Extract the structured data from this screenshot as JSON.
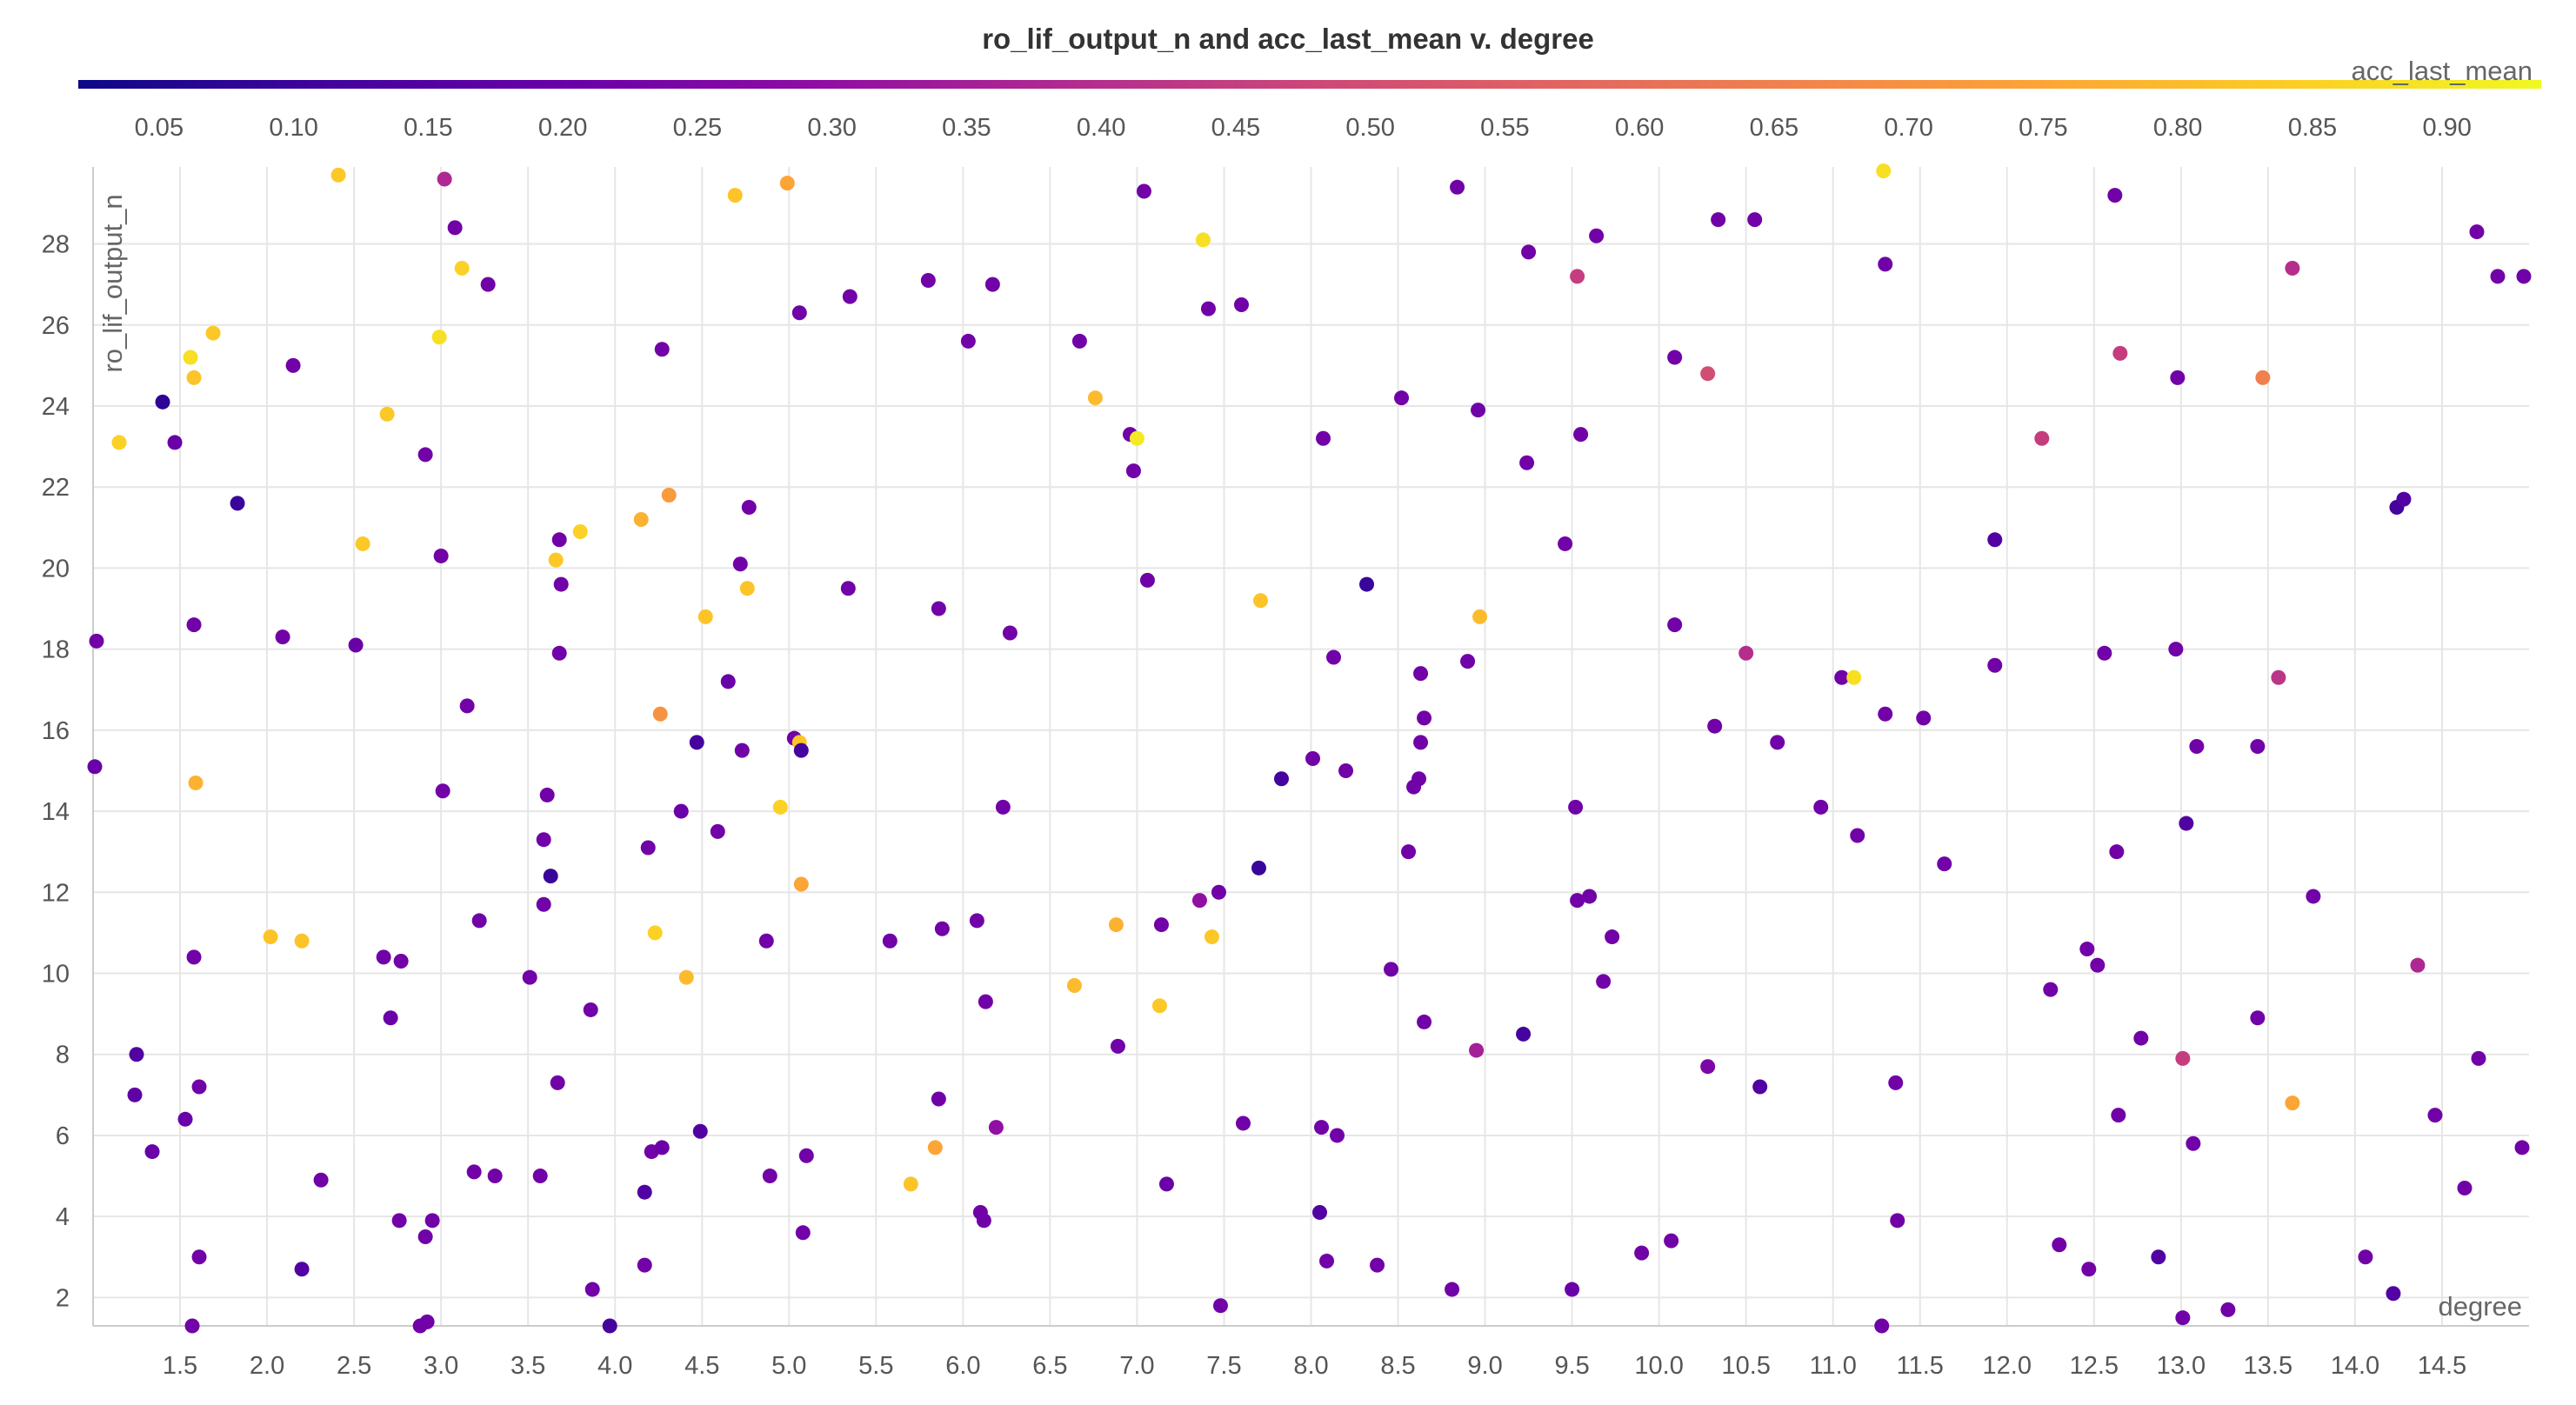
{
  "chart_data": {
    "type": "scatter",
    "title": "ro_lif_output_n and acc_last_mean v. degree",
    "xlabel": "degree",
    "ylabel": "ro_lif_output_n",
    "xlim": [
      1.0,
      15.0
    ],
    "ylim": [
      1.3,
      29.9
    ],
    "x_ticks": [
      "1.5",
      "2.0",
      "2.5",
      "3.0",
      "3.5",
      "4.0",
      "4.5",
      "5.0",
      "5.5",
      "6.0",
      "6.5",
      "7.0",
      "7.5",
      "8.0",
      "8.5",
      "9.0",
      "9.5",
      "10.0",
      "10.5",
      "11.0",
      "11.5",
      "12.0",
      "12.5",
      "13.0",
      "13.5",
      "14.0",
      "14.5"
    ],
    "y_ticks": [
      "2",
      "4",
      "6",
      "8",
      "10",
      "12",
      "14",
      "16",
      "18",
      "20",
      "22",
      "24",
      "26",
      "28"
    ],
    "grid": true,
    "color_axis": {
      "label": "acc_last_mean",
      "range": [
        0.02,
        0.935
      ],
      "ticks": [
        "0.05",
        "0.10",
        "0.15",
        "0.20",
        "0.25",
        "0.30",
        "0.35",
        "0.40",
        "0.45",
        "0.50",
        "0.55",
        "0.60",
        "0.65",
        "0.70",
        "0.75",
        "0.80",
        "0.85",
        "0.90"
      ],
      "colormap": "plasma",
      "placement": "top"
    },
    "points": [
      {
        "x": 1.02,
        "y": 18.2,
        "c": 0.22
      },
      {
        "x": 1.01,
        "y": 15.1,
        "c": 0.2
      },
      {
        "x": 1.15,
        "y": 23.1,
        "c": 0.85
      },
      {
        "x": 1.4,
        "y": 24.1,
        "c": 0.08
      },
      {
        "x": 1.47,
        "y": 23.1,
        "c": 0.2
      },
      {
        "x": 1.25,
        "y": 8.0,
        "c": 0.15
      },
      {
        "x": 1.24,
        "y": 7.0,
        "c": 0.18
      },
      {
        "x": 1.34,
        "y": 5.6,
        "c": 0.2
      },
      {
        "x": 1.53,
        "y": 6.4,
        "c": 0.2
      },
      {
        "x": 1.58,
        "y": 10.4,
        "c": 0.22
      },
      {
        "x": 1.58,
        "y": 18.6,
        "c": 0.22
      },
      {
        "x": 1.59,
        "y": 14.7,
        "c": 0.78
      },
      {
        "x": 1.56,
        "y": 25.2,
        "c": 0.88
      },
      {
        "x": 1.58,
        "y": 24.7,
        "c": 0.82
      },
      {
        "x": 1.69,
        "y": 25.8,
        "c": 0.83
      },
      {
        "x": 1.61,
        "y": 7.2,
        "c": 0.22
      },
      {
        "x": 1.61,
        "y": 3.0,
        "c": 0.22
      },
      {
        "x": 1.57,
        "y": 1.3,
        "c": 0.22
      },
      {
        "x": 1.83,
        "y": 21.6,
        "c": 0.1
      },
      {
        "x": 2.02,
        "y": 10.9,
        "c": 0.82
      },
      {
        "x": 2.09,
        "y": 18.3,
        "c": 0.22
      },
      {
        "x": 2.15,
        "y": 25.0,
        "c": 0.22
      },
      {
        "x": 2.2,
        "y": 10.8,
        "c": 0.82
      },
      {
        "x": 2.2,
        "y": 2.7,
        "c": 0.15
      },
      {
        "x": 2.31,
        "y": 4.9,
        "c": 0.22
      },
      {
        "x": 2.41,
        "y": 29.7,
        "c": 0.83
      },
      {
        "x": 2.51,
        "y": 18.1,
        "c": 0.2
      },
      {
        "x": 2.55,
        "y": 20.6,
        "c": 0.83
      },
      {
        "x": 2.67,
        "y": 10.4,
        "c": 0.22
      },
      {
        "x": 2.69,
        "y": 23.8,
        "c": 0.83
      },
      {
        "x": 2.71,
        "y": 8.9,
        "c": 0.2
      },
      {
        "x": 2.77,
        "y": 10.3,
        "c": 0.22
      },
      {
        "x": 2.76,
        "y": 3.9,
        "c": 0.22
      },
      {
        "x": 2.88,
        "y": 1.3,
        "c": 0.22
      },
      {
        "x": 2.92,
        "y": 1.4,
        "c": 0.22
      },
      {
        "x": 2.91,
        "y": 22.8,
        "c": 0.22
      },
      {
        "x": 2.91,
        "y": 3.5,
        "c": 0.22
      },
      {
        "x": 2.95,
        "y": 3.9,
        "c": 0.22
      },
      {
        "x": 2.99,
        "y": 25.7,
        "c": 0.88
      },
      {
        "x": 3.0,
        "y": 20.3,
        "c": 0.22
      },
      {
        "x": 3.01,
        "y": 14.5,
        "c": 0.22
      },
      {
        "x": 3.02,
        "y": 29.6,
        "c": 0.38
      },
      {
        "x": 3.08,
        "y": 28.4,
        "c": 0.22
      },
      {
        "x": 3.12,
        "y": 27.4,
        "c": 0.85
      },
      {
        "x": 3.15,
        "y": 16.6,
        "c": 0.22
      },
      {
        "x": 3.19,
        "y": 5.1,
        "c": 0.22
      },
      {
        "x": 3.22,
        "y": 11.3,
        "c": 0.22
      },
      {
        "x": 3.27,
        "y": 27.0,
        "c": 0.22
      },
      {
        "x": 3.31,
        "y": 5.0,
        "c": 0.22
      },
      {
        "x": 3.51,
        "y": 9.9,
        "c": 0.22
      },
      {
        "x": 3.57,
        "y": 5.0,
        "c": 0.22
      },
      {
        "x": 3.59,
        "y": 13.3,
        "c": 0.22
      },
      {
        "x": 3.59,
        "y": 11.7,
        "c": 0.22
      },
      {
        "x": 3.61,
        "y": 14.4,
        "c": 0.22
      },
      {
        "x": 3.63,
        "y": 12.4,
        "c": 0.1
      },
      {
        "x": 3.66,
        "y": 20.2,
        "c": 0.83
      },
      {
        "x": 3.68,
        "y": 20.7,
        "c": 0.22
      },
      {
        "x": 3.68,
        "y": 17.9,
        "c": 0.22
      },
      {
        "x": 3.69,
        "y": 19.6,
        "c": 0.22
      },
      {
        "x": 3.67,
        "y": 7.3,
        "c": 0.22
      },
      {
        "x": 3.8,
        "y": 20.9,
        "c": 0.85
      },
      {
        "x": 3.86,
        "y": 9.1,
        "c": 0.22
      },
      {
        "x": 3.87,
        "y": 2.2,
        "c": 0.22
      },
      {
        "x": 3.97,
        "y": 1.3,
        "c": 0.12
      },
      {
        "x": 4.15,
        "y": 21.2,
        "c": 0.78
      },
      {
        "x": 4.17,
        "y": 2.8,
        "c": 0.22
      },
      {
        "x": 4.17,
        "y": 4.6,
        "c": 0.15
      },
      {
        "x": 4.19,
        "y": 13.1,
        "c": 0.22
      },
      {
        "x": 4.21,
        "y": 5.6,
        "c": 0.22
      },
      {
        "x": 4.23,
        "y": 11.0,
        "c": 0.85
      },
      {
        "x": 4.26,
        "y": 16.4,
        "c": 0.7
      },
      {
        "x": 4.27,
        "y": 25.4,
        "c": 0.22
      },
      {
        "x": 4.27,
        "y": 5.7,
        "c": 0.2
      },
      {
        "x": 4.31,
        "y": 21.8,
        "c": 0.72
      },
      {
        "x": 4.38,
        "y": 14.0,
        "c": 0.2
      },
      {
        "x": 4.41,
        "y": 9.9,
        "c": 0.8
      },
      {
        "x": 4.47,
        "y": 15.7,
        "c": 0.12
      },
      {
        "x": 4.49,
        "y": 6.1,
        "c": 0.15
      },
      {
        "x": 4.52,
        "y": 18.8,
        "c": 0.82
      },
      {
        "x": 4.59,
        "y": 13.5,
        "c": 0.22
      },
      {
        "x": 4.65,
        "y": 17.2,
        "c": 0.2
      },
      {
        "x": 4.69,
        "y": 29.2,
        "c": 0.82
      },
      {
        "x": 4.72,
        "y": 20.1,
        "c": 0.22
      },
      {
        "x": 4.73,
        "y": 15.5,
        "c": 0.22
      },
      {
        "x": 4.76,
        "y": 19.5,
        "c": 0.82
      },
      {
        "x": 4.77,
        "y": 21.5,
        "c": 0.22
      },
      {
        "x": 4.87,
        "y": 10.8,
        "c": 0.22
      },
      {
        "x": 4.89,
        "y": 5.0,
        "c": 0.22
      },
      {
        "x": 4.95,
        "y": 14.1,
        "c": 0.85
      },
      {
        "x": 4.99,
        "y": 29.5,
        "c": 0.75
      },
      {
        "x": 5.03,
        "y": 15.8,
        "c": 0.22
      },
      {
        "x": 5.06,
        "y": 15.7,
        "c": 0.82
      },
      {
        "x": 5.06,
        "y": 26.3,
        "c": 0.22
      },
      {
        "x": 5.07,
        "y": 15.5,
        "c": 0.12
      },
      {
        "x": 5.07,
        "y": 12.2,
        "c": 0.75
      },
      {
        "x": 5.08,
        "y": 3.6,
        "c": 0.22
      },
      {
        "x": 5.1,
        "y": 5.5,
        "c": 0.22
      },
      {
        "x": 5.34,
        "y": 19.5,
        "c": 0.22
      },
      {
        "x": 5.35,
        "y": 26.7,
        "c": 0.22
      },
      {
        "x": 5.58,
        "y": 10.8,
        "c": 0.22
      },
      {
        "x": 5.7,
        "y": 4.8,
        "c": 0.82
      },
      {
        "x": 5.8,
        "y": 27.1,
        "c": 0.22
      },
      {
        "x": 5.84,
        "y": 5.7,
        "c": 0.75
      },
      {
        "x": 5.86,
        "y": 19.0,
        "c": 0.22
      },
      {
        "x": 5.86,
        "y": 6.9,
        "c": 0.22
      },
      {
        "x": 5.88,
        "y": 11.1,
        "c": 0.22
      },
      {
        "x": 6.03,
        "y": 25.6,
        "c": 0.22
      },
      {
        "x": 6.08,
        "y": 11.3,
        "c": 0.22
      },
      {
        "x": 6.1,
        "y": 4.1,
        "c": 0.22
      },
      {
        "x": 6.12,
        "y": 3.9,
        "c": 0.22
      },
      {
        "x": 6.13,
        "y": 9.3,
        "c": 0.22
      },
      {
        "x": 6.17,
        "y": 27.0,
        "c": 0.22
      },
      {
        "x": 6.19,
        "y": 6.2,
        "c": 0.3
      },
      {
        "x": 6.23,
        "y": 14.1,
        "c": 0.22
      },
      {
        "x": 6.27,
        "y": 18.4,
        "c": 0.22
      },
      {
        "x": 6.64,
        "y": 9.7,
        "c": 0.8
      },
      {
        "x": 6.67,
        "y": 25.6,
        "c": 0.22
      },
      {
        "x": 6.76,
        "y": 24.2,
        "c": 0.8
      },
      {
        "x": 6.88,
        "y": 11.2,
        "c": 0.78
      },
      {
        "x": 6.89,
        "y": 8.2,
        "c": 0.22
      },
      {
        "x": 6.96,
        "y": 23.3,
        "c": 0.22
      },
      {
        "x": 6.98,
        "y": 22.4,
        "c": 0.22
      },
      {
        "x": 7.0,
        "y": 23.2,
        "c": 0.9
      },
      {
        "x": 7.04,
        "y": 29.3,
        "c": 0.22
      },
      {
        "x": 7.06,
        "y": 19.7,
        "c": 0.22
      },
      {
        "x": 7.13,
        "y": 9.2,
        "c": 0.83
      },
      {
        "x": 7.14,
        "y": 11.2,
        "c": 0.22
      },
      {
        "x": 7.17,
        "y": 4.8,
        "c": 0.2
      },
      {
        "x": 7.36,
        "y": 11.8,
        "c": 0.3
      },
      {
        "x": 7.38,
        "y": 28.1,
        "c": 0.88
      },
      {
        "x": 7.41,
        "y": 26.4,
        "c": 0.22
      },
      {
        "x": 7.43,
        "y": 10.9,
        "c": 0.83
      },
      {
        "x": 7.47,
        "y": 12.0,
        "c": 0.22
      },
      {
        "x": 7.48,
        "y": 1.8,
        "c": 0.22
      },
      {
        "x": 7.6,
        "y": 26.5,
        "c": 0.22
      },
      {
        "x": 7.61,
        "y": 6.3,
        "c": 0.22
      },
      {
        "x": 7.7,
        "y": 12.6,
        "c": 0.1
      },
      {
        "x": 7.71,
        "y": 19.2,
        "c": 0.82
      },
      {
        "x": 7.83,
        "y": 14.8,
        "c": 0.12
      },
      {
        "x": 8.01,
        "y": 15.3,
        "c": 0.22
      },
      {
        "x": 8.05,
        "y": 4.1,
        "c": 0.15
      },
      {
        "x": 8.06,
        "y": 6.2,
        "c": 0.22
      },
      {
        "x": 8.07,
        "y": 23.2,
        "c": 0.22
      },
      {
        "x": 8.09,
        "y": 2.9,
        "c": 0.22
      },
      {
        "x": 8.13,
        "y": 17.8,
        "c": 0.22
      },
      {
        "x": 8.15,
        "y": 6.0,
        "c": 0.22
      },
      {
        "x": 8.2,
        "y": 15.0,
        "c": 0.22
      },
      {
        "x": 8.32,
        "y": 19.6,
        "c": 0.1
      },
      {
        "x": 8.38,
        "y": 2.8,
        "c": 0.22
      },
      {
        "x": 8.46,
        "y": 10.1,
        "c": 0.22
      },
      {
        "x": 8.52,
        "y": 24.2,
        "c": 0.22
      },
      {
        "x": 8.56,
        "y": 13.0,
        "c": 0.22
      },
      {
        "x": 8.59,
        "y": 14.6,
        "c": 0.22
      },
      {
        "x": 8.62,
        "y": 14.8,
        "c": 0.22
      },
      {
        "x": 8.63,
        "y": 15.7,
        "c": 0.22
      },
      {
        "x": 8.63,
        "y": 17.4,
        "c": 0.22
      },
      {
        "x": 8.65,
        "y": 16.3,
        "c": 0.22
      },
      {
        "x": 8.65,
        "y": 8.8,
        "c": 0.22
      },
      {
        "x": 8.81,
        "y": 2.2,
        "c": 0.22
      },
      {
        "x": 8.84,
        "y": 29.4,
        "c": 0.22
      },
      {
        "x": 8.9,
        "y": 17.7,
        "c": 0.22
      },
      {
        "x": 8.95,
        "y": 8.1,
        "c": 0.35
      },
      {
        "x": 8.96,
        "y": 23.9,
        "c": 0.22
      },
      {
        "x": 8.97,
        "y": 18.8,
        "c": 0.8
      },
      {
        "x": 9.22,
        "y": 8.5,
        "c": 0.12
      },
      {
        "x": 9.24,
        "y": 22.6,
        "c": 0.22
      },
      {
        "x": 9.25,
        "y": 27.8,
        "c": 0.22
      },
      {
        "x": 9.46,
        "y": 20.6,
        "c": 0.22
      },
      {
        "x": 9.5,
        "y": 2.2,
        "c": 0.2
      },
      {
        "x": 9.52,
        "y": 14.1,
        "c": 0.22
      },
      {
        "x": 9.53,
        "y": 11.8,
        "c": 0.22
      },
      {
        "x": 9.53,
        "y": 27.2,
        "c": 0.45
      },
      {
        "x": 9.55,
        "y": 23.3,
        "c": 0.22
      },
      {
        "x": 9.6,
        "y": 11.9,
        "c": 0.22
      },
      {
        "x": 9.64,
        "y": 28.2,
        "c": 0.22
      },
      {
        "x": 9.68,
        "y": 9.8,
        "c": 0.22
      },
      {
        "x": 9.73,
        "y": 10.9,
        "c": 0.22
      },
      {
        "x": 9.9,
        "y": 3.1,
        "c": 0.22
      },
      {
        "x": 10.07,
        "y": 3.4,
        "c": 0.22
      },
      {
        "x": 10.09,
        "y": 25.2,
        "c": 0.22
      },
      {
        "x": 10.09,
        "y": 18.6,
        "c": 0.22
      },
      {
        "x": 10.28,
        "y": 7.7,
        "c": 0.25
      },
      {
        "x": 10.28,
        "y": 24.8,
        "c": 0.5
      },
      {
        "x": 10.32,
        "y": 16.1,
        "c": 0.22
      },
      {
        "x": 10.34,
        "y": 28.6,
        "c": 0.22
      },
      {
        "x": 10.5,
        "y": 17.9,
        "c": 0.4
      },
      {
        "x": 10.55,
        "y": 28.6,
        "c": 0.22
      },
      {
        "x": 10.58,
        "y": 7.2,
        "c": 0.15
      },
      {
        "x": 10.68,
        "y": 15.7,
        "c": 0.22
      },
      {
        "x": 10.93,
        "y": 14.1,
        "c": 0.22
      },
      {
        "x": 11.05,
        "y": 17.3,
        "c": 0.22
      },
      {
        "x": 11.12,
        "y": 17.3,
        "c": 0.88
      },
      {
        "x": 11.14,
        "y": 13.4,
        "c": 0.22
      },
      {
        "x": 11.3,
        "y": 16.4,
        "c": 0.22
      },
      {
        "x": 11.3,
        "y": 27.5,
        "c": 0.22
      },
      {
        "x": 11.29,
        "y": 29.8,
        "c": 0.88
      },
      {
        "x": 11.28,
        "y": 1.3,
        "c": 0.22
      },
      {
        "x": 11.36,
        "y": 7.3,
        "c": 0.22
      },
      {
        "x": 11.37,
        "y": 3.9,
        "c": 0.22
      },
      {
        "x": 11.52,
        "y": 16.3,
        "c": 0.22
      },
      {
        "x": 11.64,
        "y": 12.7,
        "c": 0.22
      },
      {
        "x": 11.93,
        "y": 17.6,
        "c": 0.22
      },
      {
        "x": 11.93,
        "y": 20.7,
        "c": 0.15
      },
      {
        "x": 12.2,
        "y": 23.2,
        "c": 0.45
      },
      {
        "x": 12.25,
        "y": 9.6,
        "c": 0.22
      },
      {
        "x": 12.3,
        "y": 3.3,
        "c": 0.22
      },
      {
        "x": 12.46,
        "y": 10.6,
        "c": 0.22
      },
      {
        "x": 12.47,
        "y": 2.7,
        "c": 0.22
      },
      {
        "x": 12.52,
        "y": 10.2,
        "c": 0.22
      },
      {
        "x": 12.56,
        "y": 17.9,
        "c": 0.22
      },
      {
        "x": 12.62,
        "y": 29.2,
        "c": 0.22
      },
      {
        "x": 12.63,
        "y": 13.0,
        "c": 0.22
      },
      {
        "x": 12.64,
        "y": 6.5,
        "c": 0.22
      },
      {
        "x": 12.65,
        "y": 25.3,
        "c": 0.45
      },
      {
        "x": 12.77,
        "y": 8.4,
        "c": 0.22
      },
      {
        "x": 12.87,
        "y": 3.0,
        "c": 0.15
      },
      {
        "x": 12.97,
        "y": 18.0,
        "c": 0.22
      },
      {
        "x": 12.98,
        "y": 24.7,
        "c": 0.22
      },
      {
        "x": 13.01,
        "y": 7.9,
        "c": 0.45
      },
      {
        "x": 13.01,
        "y": 1.5,
        "c": 0.22
      },
      {
        "x": 13.03,
        "y": 13.7,
        "c": 0.15
      },
      {
        "x": 13.07,
        "y": 5.8,
        "c": 0.22
      },
      {
        "x": 13.09,
        "y": 15.6,
        "c": 0.22
      },
      {
        "x": 13.27,
        "y": 1.7,
        "c": 0.22
      },
      {
        "x": 13.44,
        "y": 8.9,
        "c": 0.22
      },
      {
        "x": 13.44,
        "y": 15.6,
        "c": 0.22
      },
      {
        "x": 13.47,
        "y": 24.7,
        "c": 0.65
      },
      {
        "x": 13.56,
        "y": 17.3,
        "c": 0.42
      },
      {
        "x": 13.64,
        "y": 27.4,
        "c": 0.4
      },
      {
        "x": 13.64,
        "y": 6.8,
        "c": 0.75
      },
      {
        "x": 13.76,
        "y": 11.9,
        "c": 0.22
      },
      {
        "x": 14.06,
        "y": 3.0,
        "c": 0.22
      },
      {
        "x": 14.22,
        "y": 2.1,
        "c": 0.15
      },
      {
        "x": 14.24,
        "y": 21.5,
        "c": 0.12
      },
      {
        "x": 14.28,
        "y": 21.7,
        "c": 0.15
      },
      {
        "x": 14.36,
        "y": 10.2,
        "c": 0.38
      },
      {
        "x": 14.46,
        "y": 6.5,
        "c": 0.22
      },
      {
        "x": 14.63,
        "y": 4.7,
        "c": 0.22
      },
      {
        "x": 14.7,
        "y": 28.3,
        "c": 0.22
      },
      {
        "x": 14.71,
        "y": 7.9,
        "c": 0.22
      },
      {
        "x": 14.82,
        "y": 27.2,
        "c": 0.22
      },
      {
        "x": 14.97,
        "y": 27.2,
        "c": 0.22
      },
      {
        "x": 14.96,
        "y": 5.7,
        "c": 0.22
      }
    ]
  }
}
